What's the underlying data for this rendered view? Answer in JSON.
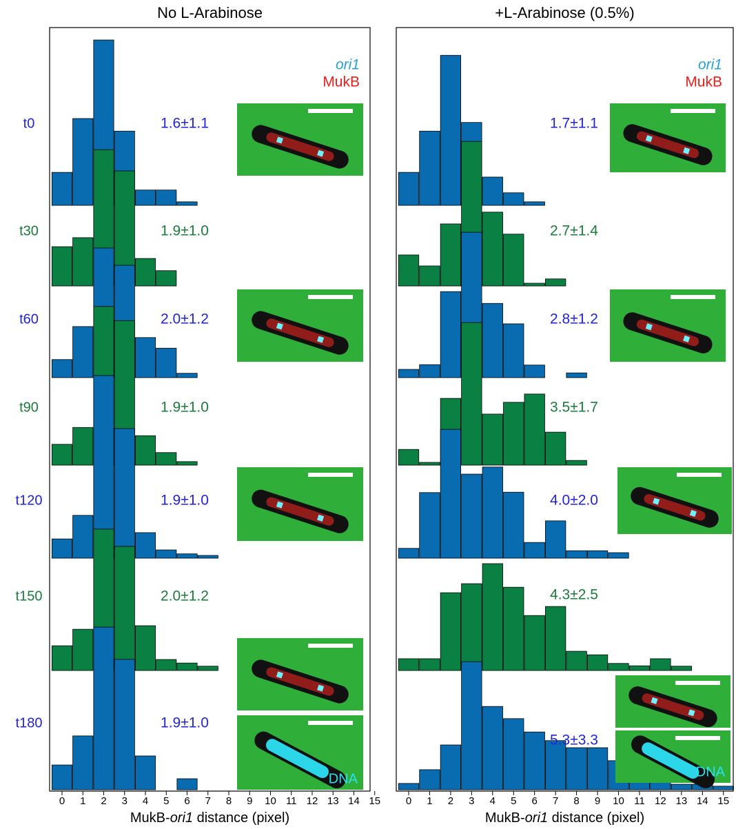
{
  "chart_data": [
    {
      "type": "ridgeline-bar",
      "title": "No L-Arabinose",
      "xlabel": [
        "MukB-",
        "ori1",
        " distance (pixel)"
      ],
      "xlim": [
        -0.5,
        15.5
      ],
      "xticks": [
        0,
        1,
        2,
        3,
        4,
        5,
        6,
        7,
        8,
        9,
        10,
        11,
        12,
        13,
        14,
        15
      ],
      "channels": [
        {
          "name": "ori1",
          "color": "#2a9fd6"
        },
        {
          "name": "MukB",
          "color": "#e8201c"
        }
      ],
      "image_label": "DNA",
      "series": [
        {
          "name": "t0",
          "color": "#0a6cb0",
          "label_color": "#2323d8",
          "annotation": "1.6±1.1",
          "values": [
            8.4,
            22.1,
            42.1,
            18.9,
            3.9,
            3.9,
            0.9,
            0,
            0,
            0,
            0,
            0,
            0,
            0,
            0,
            0
          ]
        },
        {
          "name": "t30",
          "color": "#0b8043",
          "label_color": "#1e7a3c",
          "annotation": "1.9±1.0",
          "values": [
            10,
            12.3,
            34.7,
            29.3,
            7,
            3.9,
            0,
            0,
            0,
            0,
            0,
            0,
            0,
            0,
            0,
            0
          ]
        },
        {
          "name": "t60",
          "color": "#0a6cb0",
          "label_color": "#2323d8",
          "annotation": "2.0±1.2",
          "values": [
            4.6,
            13,
            33,
            28.6,
            10.2,
            7.5,
            1.1,
            0,
            0,
            0,
            0,
            0,
            0,
            0,
            0,
            0
          ]
        },
        {
          "name": "t90",
          "color": "#0b8043",
          "label_color": "#1e7a3c",
          "annotation": "1.9±1.0",
          "values": [
            5.3,
            9.6,
            40.4,
            36.8,
            7.5,
            3.2,
            0.9,
            0,
            0,
            0,
            0,
            0,
            0,
            0,
            0,
            0
          ]
        },
        {
          "name": "t120",
          "color": "#0a6cb0",
          "label_color": "#2323d8",
          "annotation": "1.9±1.0",
          "values": [
            4.9,
            10.9,
            46.5,
            33,
            6.5,
            2.1,
            1.1,
            0.7,
            0,
            0,
            0,
            0,
            0,
            0,
            0,
            0
          ]
        },
        {
          "name": "t150",
          "color": "#0b8043",
          "label_color": "#1e7a3c",
          "annotation": "2.0±1.2",
          "values": [
            6.3,
            10.5,
            36,
            31.6,
            11.4,
            2.8,
            1.9,
            1.1,
            0,
            0,
            0,
            0,
            0,
            0,
            0,
            0
          ]
        },
        {
          "name": "t180",
          "color": "#0a6cb0",
          "label_color": "#2323d8",
          "annotation": "1.9±1.0",
          "values": [
            6.3,
            13.7,
            41.4,
            33.2,
            8.6,
            0,
            2.8,
            0,
            0,
            0,
            0,
            0,
            0,
            0,
            0,
            0
          ]
        }
      ]
    },
    {
      "type": "ridgeline-bar",
      "title": "+L-Arabinose (0.5%)",
      "xlabel": [
        "MukB-",
        "ori1",
        " distance (pixel)"
      ],
      "xlim": [
        -0.5,
        15.5
      ],
      "xticks": [
        0,
        1,
        2,
        3,
        4,
        5,
        6,
        7,
        8,
        9,
        10,
        11,
        12,
        13,
        14,
        15
      ],
      "channels": [
        {
          "name": "ori1",
          "color": "#2a9fd6"
        },
        {
          "name": "MukB",
          "color": "#e8201c"
        }
      ],
      "image_label": "DNA",
      "series": [
        {
          "color": "#0a6cb0",
          "label_color": "#2323d8",
          "annotation": "1.7±1.1",
          "values": [
            8.4,
            18.9,
            38.2,
            21.1,
            7.2,
            3.2,
            0.9,
            0,
            0,
            0,
            0,
            0,
            0,
            0,
            0,
            0
          ]
        },
        {
          "color": "#0b8043",
          "label_color": "#1e7a3c",
          "annotation": "2.7±1.4",
          "values": [
            7.9,
            5.1,
            15.8,
            36.8,
            18.8,
            13.2,
            0.7,
            1.8,
            0,
            0,
            0,
            0,
            0,
            0,
            0,
            0
          ]
        },
        {
          "color": "#0a6cb0",
          "label_color": "#2323d8",
          "annotation": "2.8±1.2",
          "values": [
            2.1,
            3.3,
            21.9,
            37,
            18.9,
            13.7,
            3.2,
            0,
            1.2,
            0,
            0,
            0,
            0,
            0,
            0,
            0
          ]
        },
        {
          "color": "#0b8043",
          "label_color": "#1e7a3c",
          "annotation": "3.5±1.7",
          "values": [
            4,
            0.7,
            17,
            36.3,
            13,
            16,
            18.1,
            8.4,
            1.2,
            0,
            0,
            0,
            0,
            0,
            0,
            0
          ]
        },
        {
          "color": "#0a6cb0",
          "label_color": "#2323d8",
          "annotation": "4.0±2.0",
          "values": [
            2.5,
            16.7,
            32.8,
            21.4,
            23.2,
            16.8,
            4,
            9.5,
            1.9,
            1.9,
            1.4,
            0,
            0,
            0,
            0,
            0
          ]
        },
        {
          "color": "#0b8043",
          "label_color": "#1e7a3c",
          "annotation": "4.3±2.5",
          "values": [
            3,
            3,
            19.8,
            22.1,
            27.2,
            21.2,
            14,
            16.3,
            4.9,
            4,
            1.8,
            1.2,
            3,
            1.1,
            0,
            0
          ]
        },
        {
          "color": "#0a6cb0",
          "label_color": "#2323d8",
          "annotation": "5.3±3.3",
          "values": [
            1.6,
            5.1,
            11.4,
            32.6,
            21.2,
            18.1,
            14.7,
            12.5,
            10.7,
            10.7,
            7.4,
            6.1,
            1.9,
            1.4,
            1.4,
            0.9
          ]
        }
      ]
    }
  ]
}
